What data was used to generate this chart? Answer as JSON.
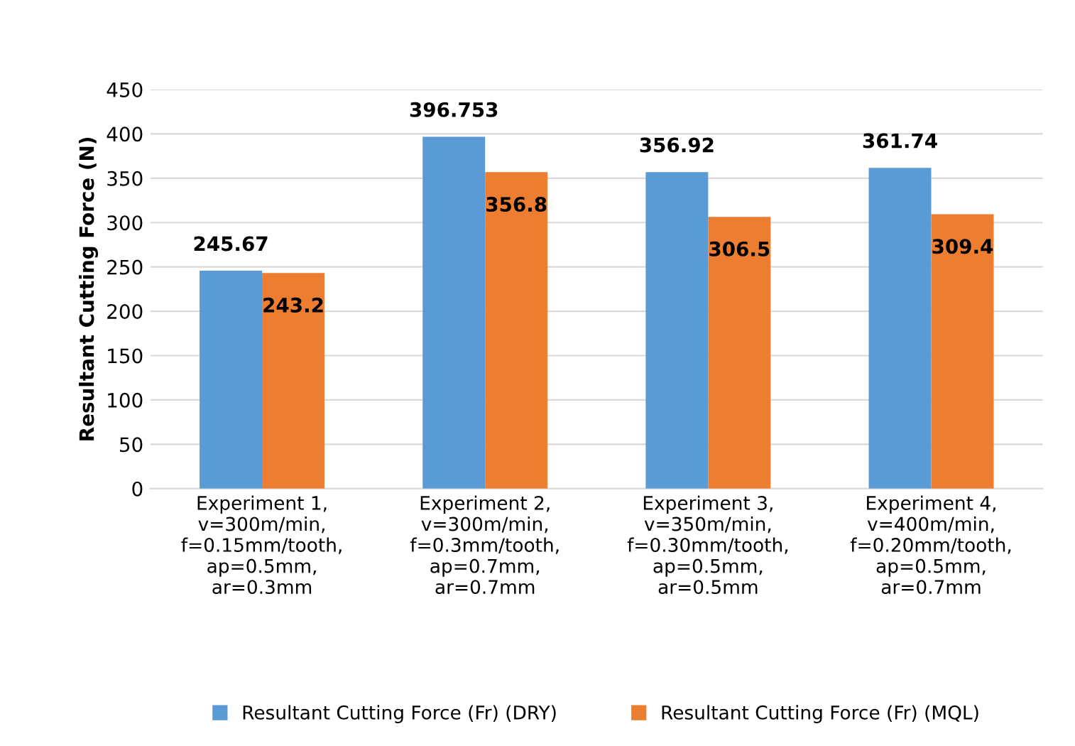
{
  "chart_data": {
    "type": "bar",
    "ylabel": "Resultant Cutting Force (N)",
    "categories": [
      "Experiment 1,\nv=300m/min,\nf=0.15mm/tooth,\nap=0.5mm,\nar=0.3mm",
      "Experiment 2,\nv=300m/min,\nf=0.3mm/tooth,\nap=0.7mm,\nar=0.7mm",
      "Experiment 3,\nv=350m/min,\nf=0.30mm/tooth,\nap=0.5mm,\nar=0.5mm",
      "Experiment 4,\nv=400m/min,\nf=0.20mm/tooth,\nap=0.5mm,\nar=0.7mm"
    ],
    "series": [
      {
        "name": "Resultant Cutting Force (Fr) (DRY)",
        "color": "#5b9bd5",
        "values": [
          245.67,
          396.753,
          356.92,
          361.74
        ]
      },
      {
        "name": "Resultant Cutting Force (Fr) (MQL)",
        "color": "#ed7d31",
        "values": [
          243.2,
          356.8,
          306.5,
          309.4
        ]
      }
    ],
    "ylim": [
      0,
      450
    ],
    "yticks": [
      0,
      50,
      100,
      150,
      200,
      250,
      300,
      350,
      400,
      450
    ],
    "grid": "y",
    "legend": "bottom",
    "data_labels": true
  }
}
